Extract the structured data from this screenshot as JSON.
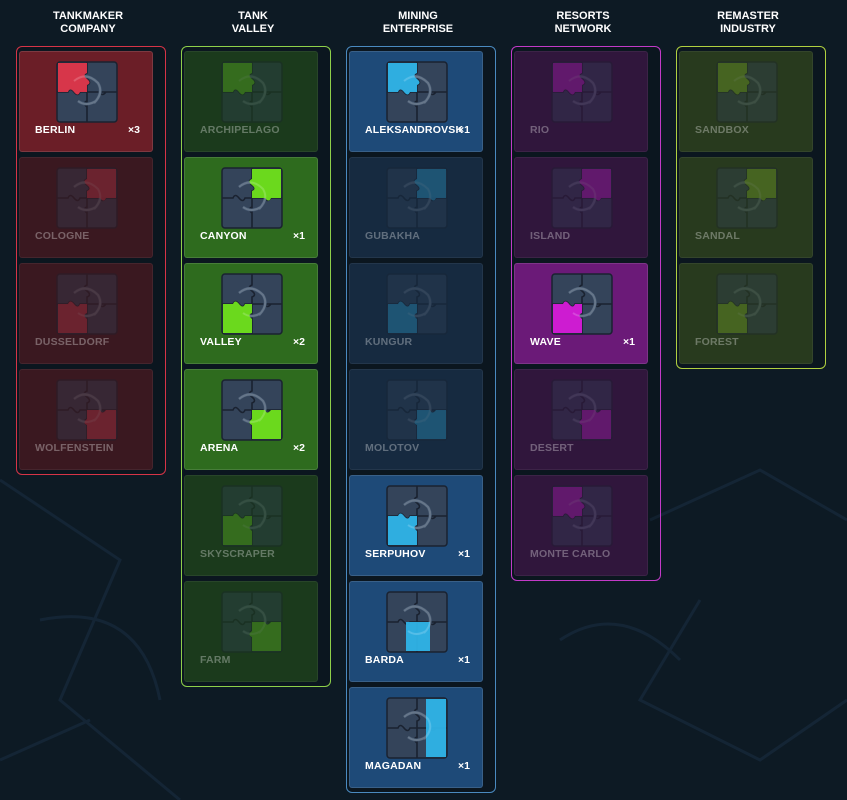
{
  "columns": [
    {
      "title": "TANKMAKER COMPANY",
      "title_lines": [
        "TANKMAKER",
        "COMPANY"
      ],
      "accent": "#e0364a",
      "border": "#d63447",
      "bg_active": "#6b1e27",
      "bg_dim": "#3a1820",
      "cards": [
        {
          "name": "BERLIN",
          "count": "×3",
          "active": true,
          "piece": 0,
          "piece_icon": "puzzle-icon"
        },
        {
          "name": "COLOGNE",
          "count": "",
          "active": false,
          "piece": 1,
          "piece_icon": "puzzle-icon"
        },
        {
          "name": "DUSSELDORF",
          "count": "",
          "active": false,
          "piece": 2,
          "piece_icon": "puzzle-icon"
        },
        {
          "name": "WOLFENSTEIN",
          "count": "",
          "active": false,
          "piece": 3,
          "piece_icon": "puzzle-icon"
        }
      ]
    },
    {
      "title": "TANK VALLEY",
      "title_lines": [
        "TANK",
        "VALLEY"
      ],
      "accent": "#6fe21a",
      "border": "#8ed04a",
      "bg_active": "#2e6b1e",
      "bg_dim": "#1b3a1c",
      "cards": [
        {
          "name": "ARCHIPELAGO",
          "count": "",
          "active": false,
          "piece": 0,
          "piece_icon": "puzzle-icon"
        },
        {
          "name": "CANYON",
          "count": "×1",
          "active": true,
          "piece": 1,
          "piece_icon": "puzzle-icon"
        },
        {
          "name": "VALLEY",
          "count": "×2",
          "active": true,
          "piece": 2,
          "piece_icon": "puzzle-icon"
        },
        {
          "name": "ARENA",
          "count": "×2",
          "active": true,
          "piece": 3,
          "piece_icon": "puzzle-icon"
        },
        {
          "name": "SKYSCRAPER",
          "count": "",
          "active": false,
          "piece": 4,
          "piece_icon": "puzzle-icon"
        },
        {
          "name": "FARM",
          "count": "",
          "active": false,
          "piece": 5,
          "piece_icon": "puzzle-icon"
        }
      ]
    },
    {
      "title": "MINING ENTERPRISE",
      "title_lines": [
        "MINING",
        "ENTERPRISE"
      ],
      "accent": "#2fb4e8",
      "border": "#4a8ac0",
      "bg_active": "#1e4a78",
      "bg_dim": "#162a40",
      "cards": [
        {
          "name": "ALEKSANDROVSK",
          "count": "×1",
          "active": true,
          "piece": 0,
          "piece_icon": "puzzle-icon"
        },
        {
          "name": "GUBAKHA",
          "count": "",
          "active": false,
          "piece": 1,
          "piece_icon": "puzzle-icon"
        },
        {
          "name": "KUNGUR",
          "count": "",
          "active": false,
          "piece": 2,
          "piece_icon": "puzzle-icon"
        },
        {
          "name": "MOLOTOV",
          "count": "",
          "active": false,
          "piece": 3,
          "piece_icon": "puzzle-icon"
        },
        {
          "name": "SERPUHOV",
          "count": "×1",
          "active": true,
          "piece": 4,
          "piece_icon": "puzzle-icon"
        },
        {
          "name": "BARDA",
          "count": "×1",
          "active": true,
          "piece": 5,
          "piece_icon": "puzzle-icon"
        },
        {
          "name": "MAGADAN",
          "count": "×1",
          "active": true,
          "piece": 6,
          "piece_icon": "puzzle-icon"
        }
      ]
    },
    {
      "title": "RESORTS NETWORK",
      "title_lines": [
        "RESORTS",
        "NETWORK"
      ],
      "accent": "#d61ad8",
      "border": "#c23ac8",
      "bg_active": "#6b1a78",
      "bg_dim": "#30163c",
      "cards": [
        {
          "name": "RIO",
          "count": "",
          "active": false,
          "piece": 0,
          "piece_icon": "puzzle-icon"
        },
        {
          "name": "ISLAND",
          "count": "",
          "active": false,
          "piece": 1,
          "piece_icon": "puzzle-icon"
        },
        {
          "name": "WAVE",
          "count": "×1",
          "active": true,
          "piece": 2,
          "piece_icon": "puzzle-icon"
        },
        {
          "name": "DESERT",
          "count": "",
          "active": false,
          "piece": 3,
          "piece_icon": "puzzle-icon"
        },
        {
          "name": "MONTE CARLO",
          "count": "",
          "active": false,
          "piece": 4,
          "piece_icon": "puzzle-icon"
        }
      ]
    },
    {
      "title": "REMASTER INDUSTRY",
      "title_lines": [
        "REMASTER",
        "INDUSTRY"
      ],
      "accent": "#8cc820",
      "border": "#b0d040",
      "bg_active": "#3a5a1e",
      "bg_dim": "#283a1e",
      "cards": [
        {
          "name": "SANDBOX",
          "count": "",
          "active": false,
          "piece": 0,
          "piece_icon": "puzzle-icon"
        },
        {
          "name": "SANDAL",
          "count": "",
          "active": false,
          "piece": 1,
          "piece_icon": "puzzle-icon"
        },
        {
          "name": "FOREST",
          "count": "",
          "active": false,
          "piece": 2,
          "piece_icon": "puzzle-icon"
        }
      ]
    }
  ]
}
